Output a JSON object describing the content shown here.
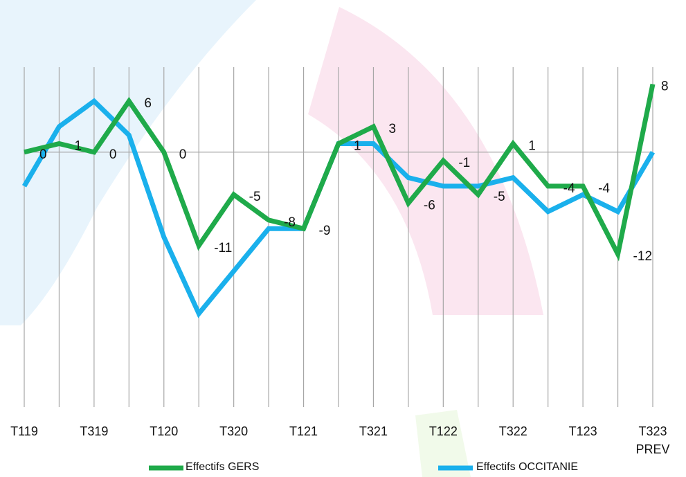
{
  "chart_data": {
    "type": "line",
    "categories": [
      "T119",
      null,
      "T319",
      null,
      "T120",
      null,
      "T320",
      null,
      "T121",
      null,
      "T321",
      null,
      "T122",
      null,
      "T322",
      null,
      "T123",
      null,
      "T323 PREV"
    ],
    "series": [
      {
        "name": "Effectifs GERS",
        "color": "#1faa4a",
        "values": [
          0,
          1,
          0,
          6,
          0,
          -11,
          -5,
          -8,
          -9,
          1,
          3,
          -6,
          -1,
          -5,
          1,
          -4,
          -4,
          -12,
          8
        ]
      },
      {
        "name": "Effectifs OCCITANIE",
        "color": "#1ab0ec",
        "values": [
          -4,
          3,
          6,
          2,
          -10,
          -19,
          -14,
          -9,
          -9,
          1,
          1,
          -3,
          -4,
          -4,
          -3,
          -7,
          -5,
          -7,
          0
        ]
      }
    ],
    "ylim": [
      -30,
      10
    ],
    "grid": true
  }
}
